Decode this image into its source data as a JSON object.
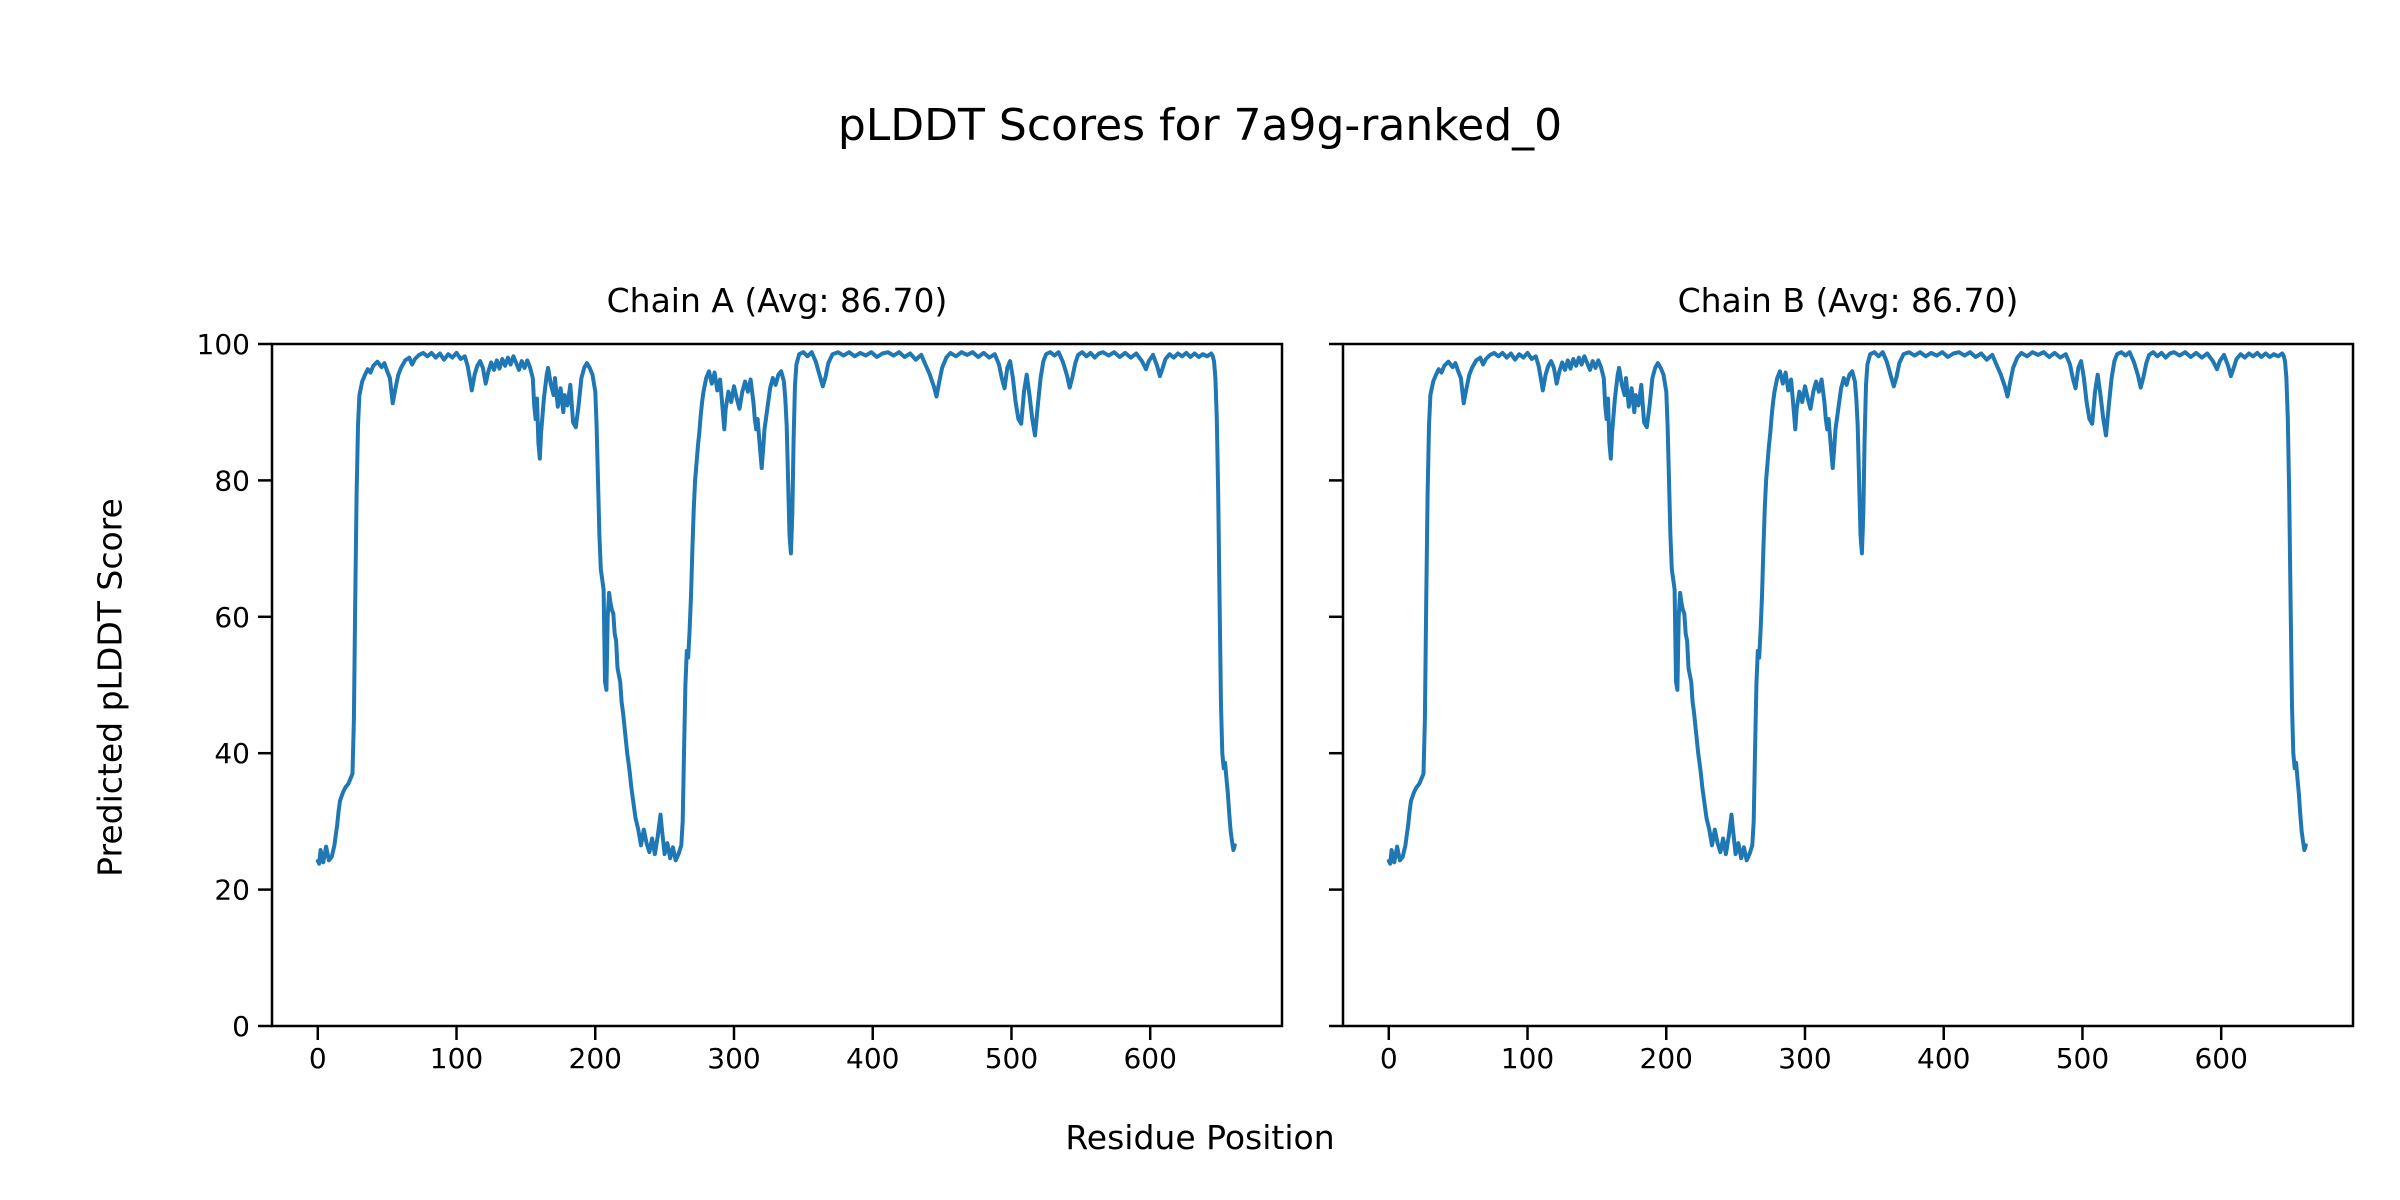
{
  "figure": {
    "title": "pLDDT Scores for 7a9g-ranked_0",
    "background": "#ffffff"
  },
  "chart_data": {
    "type": "line",
    "title": "pLDDT Scores for 7a9g-ranked_0",
    "xlabel": "Residue Position",
    "ylabel": "Predicted pLDDT Score",
    "line_color": "#1f77b4",
    "axis_color": "#000000",
    "grid": false,
    "legend": "none",
    "xlim": [
      -33,
      695
    ],
    "ylim": [
      0,
      100
    ],
    "xticks": [
      0,
      100,
      200,
      300,
      400,
      500,
      600
    ],
    "yticks": [
      0,
      20,
      40,
      60,
      80,
      100
    ],
    "subplots": [
      {
        "title": "Chain A (Avg: 86.70)",
        "avg": "86.70",
        "y_tick_labels": true
      },
      {
        "title": "Chain B (Avg: 86.70)",
        "avg": "86.70",
        "y_tick_labels": false
      }
    ],
    "series_shared_between_subplots": true,
    "points": [
      [
        0,
        24.2
      ],
      [
        1,
        23.8
      ],
      [
        2,
        25.8
      ],
      [
        4,
        24.0
      ],
      [
        6,
        26.3
      ],
      [
        8,
        24.3
      ],
      [
        10,
        24.8
      ],
      [
        12,
        26.5
      ],
      [
        13,
        28.0
      ],
      [
        14,
        29.5
      ],
      [
        15,
        31.5
      ],
      [
        16,
        33.0
      ],
      [
        18,
        34.2
      ],
      [
        20,
        35.0
      ],
      [
        22,
        35.5
      ],
      [
        24,
        36.5
      ],
      [
        25,
        37.0
      ],
      [
        26,
        45.0
      ],
      [
        27,
        62.0
      ],
      [
        28,
        78.0
      ],
      [
        29,
        88.0
      ],
      [
        30,
        92.5
      ],
      [
        31,
        93.5
      ],
      [
        32,
        94.5
      ],
      [
        34,
        95.5
      ],
      [
        36,
        96.3
      ],
      [
        38,
        95.8
      ],
      [
        40,
        96.8
      ],
      [
        43,
        97.4
      ],
      [
        46,
        96.6
      ],
      [
        48,
        97.2
      ],
      [
        50,
        96.0
      ],
      [
        52,
        95.0
      ],
      [
        54,
        91.3
      ],
      [
        56,
        93.5
      ],
      [
        58,
        95.5
      ],
      [
        60,
        96.5
      ],
      [
        63,
        97.6
      ],
      [
        66,
        98.0
      ],
      [
        68,
        97.0
      ],
      [
        70,
        97.8
      ],
      [
        73,
        98.4
      ],
      [
        76,
        98.7
      ],
      [
        79,
        98.2
      ],
      [
        82,
        98.7
      ],
      [
        85,
        98.0
      ],
      [
        88,
        98.6
      ],
      [
        91,
        97.7
      ],
      [
        94,
        98.5
      ],
      [
        97,
        98.0
      ],
      [
        100,
        98.7
      ],
      [
        103,
        97.8
      ],
      [
        106,
        98.2
      ],
      [
        108,
        96.8
      ],
      [
        110,
        94.5
      ],
      [
        111,
        93.2
      ],
      [
        113,
        95.5
      ],
      [
        115,
        96.8
      ],
      [
        117,
        97.5
      ],
      [
        119,
        96.5
      ],
      [
        121,
        94.2
      ],
      [
        123,
        96.0
      ],
      [
        125,
        97.3
      ],
      [
        127,
        96.2
      ],
      [
        129,
        97.6
      ],
      [
        131,
        96.4
      ],
      [
        133,
        97.8
      ],
      [
        135,
        96.8
      ],
      [
        137,
        98.0
      ],
      [
        139,
        97.0
      ],
      [
        141,
        98.2
      ],
      [
        143,
        97.2
      ],
      [
        145,
        96.2
      ],
      [
        147,
        97.5
      ],
      [
        149,
        96.5
      ],
      [
        151,
        97.6
      ],
      [
        153,
        96.6
      ],
      [
        155,
        95.0
      ],
      [
        156,
        91.0
      ],
      [
        157,
        89.0
      ],
      [
        158,
        92.0
      ],
      [
        159,
        85.5
      ],
      [
        160,
        83.2
      ],
      [
        161,
        87.0
      ],
      [
        163,
        92.0
      ],
      [
        165,
        95.5
      ],
      [
        166,
        96.5
      ],
      [
        168,
        94.0
      ],
      [
        170,
        92.5
      ],
      [
        171,
        95.0
      ],
      [
        173,
        90.8
      ],
      [
        175,
        93.5
      ],
      [
        177,
        90.0
      ],
      [
        178,
        92.5
      ],
      [
        180,
        91.0
      ],
      [
        182,
        94.0
      ],
      [
        184,
        88.5
      ],
      [
        186,
        87.8
      ],
      [
        188,
        91.0
      ],
      [
        190,
        95.0
      ],
      [
        192,
        96.5
      ],
      [
        194,
        97.2
      ],
      [
        196,
        96.5
      ],
      [
        198,
        95.5
      ],
      [
        200,
        93.0
      ],
      [
        201,
        88.0
      ],
      [
        202,
        80.0
      ],
      [
        203,
        72.0
      ],
      [
        204,
        67.0
      ],
      [
        205,
        65.5
      ],
      [
        206,
        64.0
      ],
      [
        207,
        50.5
      ],
      [
        208,
        49.3
      ],
      [
        209,
        60.0
      ],
      [
        210,
        63.5
      ],
      [
        211,
        62.0
      ],
      [
        212,
        61.0
      ],
      [
        213,
        60.5
      ],
      [
        214,
        57.5
      ],
      [
        215,
        56.5
      ],
      [
        216,
        52.5
      ],
      [
        217,
        51.5
      ],
      [
        218,
        50.5
      ],
      [
        219,
        47.5
      ],
      [
        220,
        46.0
      ],
      [
        221,
        44.0
      ],
      [
        222,
        42.0
      ],
      [
        223,
        40.0
      ],
      [
        224,
        38.5
      ],
      [
        225,
        37.0
      ],
      [
        226,
        35.0
      ],
      [
        227,
        33.5
      ],
      [
        228,
        32.0
      ],
      [
        229,
        30.5
      ],
      [
        231,
        28.8
      ],
      [
        233,
        26.5
      ],
      [
        235,
        28.8
      ],
      [
        237,
        26.8
      ],
      [
        239,
        25.5
      ],
      [
        241,
        27.5
      ],
      [
        243,
        25.2
      ],
      [
        245,
        27.8
      ],
      [
        247,
        31.0
      ],
      [
        248,
        29.0
      ],
      [
        250,
        25.2
      ],
      [
        252,
        26.8
      ],
      [
        254,
        24.6
      ],
      [
        256,
        26.2
      ],
      [
        258,
        24.3
      ],
      [
        260,
        25.2
      ],
      [
        262,
        26.5
      ],
      [
        263,
        30.0
      ],
      [
        264,
        40.0
      ],
      [
        265,
        50.0
      ],
      [
        266,
        55.0
      ],
      [
        267,
        54.0
      ],
      [
        268,
        58.0
      ],
      [
        269,
        63.0
      ],
      [
        270,
        70.0
      ],
      [
        271,
        76.0
      ],
      [
        272,
        80.0
      ],
      [
        273,
        82.5
      ],
      [
        274,
        85.0
      ],
      [
        275,
        87.0
      ],
      [
        276,
        89.5
      ],
      [
        277,
        91.5
      ],
      [
        278,
        93.0
      ],
      [
        280,
        95.0
      ],
      [
        282,
        96.0
      ],
      [
        284,
        94.2
      ],
      [
        286,
        95.8
      ],
      [
        288,
        93.2
      ],
      [
        290,
        94.8
      ],
      [
        292,
        90.0
      ],
      [
        293,
        87.5
      ],
      [
        294,
        90.5
      ],
      [
        296,
        93.0
      ],
      [
        298,
        91.5
      ],
      [
        300,
        93.8
      ],
      [
        302,
        92.0
      ],
      [
        304,
        90.5
      ],
      [
        306,
        93.0
      ],
      [
        308,
        94.5
      ],
      [
        310,
        93.0
      ],
      [
        312,
        94.8
      ],
      [
        314,
        91.5
      ],
      [
        315,
        89.0
      ],
      [
        316,
        87.5
      ],
      [
        317,
        89.0
      ],
      [
        318,
        86.5
      ],
      [
        319,
        84.0
      ],
      [
        320,
        81.8
      ],
      [
        321,
        84.5
      ],
      [
        322,
        87.5
      ],
      [
        324,
        90.5
      ],
      [
        326,
        93.5
      ],
      [
        328,
        95.0
      ],
      [
        330,
        94.0
      ],
      [
        332,
        95.5
      ],
      [
        334,
        96.0
      ],
      [
        336,
        94.5
      ],
      [
        337,
        92.0
      ],
      [
        338,
        88.0
      ],
      [
        339,
        80.0
      ],
      [
        340,
        72.0
      ],
      [
        341,
        69.3
      ],
      [
        342,
        75.0
      ],
      [
        343,
        86.0
      ],
      [
        344,
        94.0
      ],
      [
        345,
        97.0
      ],
      [
        347,
        98.5
      ],
      [
        350,
        98.8
      ],
      [
        353,
        98.2
      ],
      [
        356,
        98.8
      ],
      [
        359,
        97.4
      ],
      [
        362,
        95.2
      ],
      [
        364,
        93.8
      ],
      [
        366,
        95.2
      ],
      [
        368,
        97.2
      ],
      [
        371,
        98.5
      ],
      [
        375,
        98.8
      ],
      [
        379,
        98.3
      ],
      [
        383,
        98.8
      ],
      [
        387,
        98.2
      ],
      [
        391,
        98.7
      ],
      [
        395,
        98.3
      ],
      [
        399,
        98.8
      ],
      [
        403,
        98.1
      ],
      [
        407,
        98.6
      ],
      [
        411,
        98.8
      ],
      [
        415,
        98.3
      ],
      [
        419,
        98.8
      ],
      [
        423,
        98.1
      ],
      [
        427,
        98.6
      ],
      [
        431,
        97.7
      ],
      [
        435,
        98.4
      ],
      [
        438,
        97.0
      ],
      [
        441,
        95.6
      ],
      [
        444,
        93.8
      ],
      [
        446,
        92.3
      ],
      [
        448,
        94.5
      ],
      [
        450,
        96.5
      ],
      [
        453,
        98.0
      ],
      [
        456,
        98.7
      ],
      [
        460,
        98.2
      ],
      [
        464,
        98.8
      ],
      [
        468,
        98.4
      ],
      [
        472,
        98.8
      ],
      [
        476,
        98.1
      ],
      [
        480,
        98.7
      ],
      [
        484,
        98.0
      ],
      [
        488,
        98.5
      ],
      [
        491,
        97.0
      ],
      [
        493,
        95.0
      ],
      [
        495,
        93.5
      ],
      [
        497,
        96.5
      ],
      [
        499,
        97.5
      ],
      [
        501,
        95.0
      ],
      [
        503,
        91.5
      ],
      [
        505,
        89.0
      ],
      [
        507,
        88.3
      ],
      [
        509,
        93.0
      ],
      [
        511,
        95.5
      ],
      [
        513,
        92.5
      ],
      [
        515,
        89.0
      ],
      [
        517,
        86.6
      ],
      [
        519,
        91.0
      ],
      [
        521,
        95.0
      ],
      [
        523,
        97.5
      ],
      [
        525,
        98.5
      ],
      [
        528,
        98.8
      ],
      [
        531,
        98.3
      ],
      [
        534,
        98.8
      ],
      [
        537,
        97.4
      ],
      [
        540,
        95.4
      ],
      [
        542,
        93.6
      ],
      [
        544,
        95.2
      ],
      [
        546,
        97.2
      ],
      [
        548,
        98.4
      ],
      [
        551,
        98.8
      ],
      [
        554,
        98.2
      ],
      [
        557,
        98.7
      ],
      [
        560,
        98.0
      ],
      [
        563,
        98.6
      ],
      [
        566,
        98.8
      ],
      [
        570,
        98.3
      ],
      [
        574,
        98.8
      ],
      [
        578,
        98.1
      ],
      [
        582,
        98.7
      ],
      [
        586,
        98.0
      ],
      [
        590,
        98.6
      ],
      [
        594,
        97.5
      ],
      [
        597,
        96.3
      ],
      [
        599,
        97.5
      ],
      [
        602,
        98.4
      ],
      [
        605,
        96.8
      ],
      [
        607,
        95.3
      ],
      [
        609,
        96.5
      ],
      [
        611,
        97.8
      ],
      [
        614,
        98.5
      ],
      [
        617,
        98.0
      ],
      [
        620,
        98.6
      ],
      [
        623,
        98.2
      ],
      [
        626,
        98.7
      ],
      [
        629,
        98.1
      ],
      [
        632,
        98.6
      ],
      [
        635,
        98.1
      ],
      [
        638,
        98.5
      ],
      [
        641,
        98.2
      ],
      [
        644,
        98.6
      ],
      [
        645,
        98.3
      ],
      [
        646,
        97.5
      ],
      [
        647,
        95.0
      ],
      [
        648,
        89.0
      ],
      [
        649,
        78.0
      ],
      [
        650,
        62.0
      ],
      [
        651,
        47.0
      ],
      [
        652,
        40.0
      ],
      [
        653,
        37.8
      ],
      [
        654,
        38.6
      ],
      [
        655,
        36.2
      ],
      [
        656,
        34.0
      ],
      [
        657,
        31.0
      ],
      [
        658,
        28.5
      ],
      [
        659,
        27.0
      ],
      [
        660,
        25.8
      ],
      [
        661,
        26.5
      ]
    ]
  }
}
